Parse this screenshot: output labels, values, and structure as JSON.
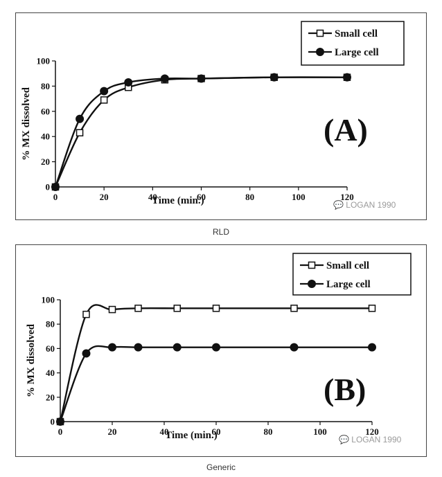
{
  "chart_data": [
    {
      "type": "line",
      "panel_label": "(A)",
      "caption": "RLD",
      "xlabel": "Time (min.)",
      "ylabel": "% MX dissolved",
      "xlim": [
        0,
        120
      ],
      "ylim": [
        0,
        100
      ],
      "xticks": [
        "0",
        "20",
        "40",
        "60",
        "80",
        "100",
        "120"
      ],
      "yticks": [
        "0",
        "20",
        "40",
        "60",
        "80",
        "100"
      ],
      "legend_position": "top-right",
      "watermark": "LOGAN 1990",
      "x": [
        0,
        10,
        20,
        30,
        45,
        60,
        90,
        120
      ],
      "series": [
        {
          "name": "Small cell",
          "marker": "open-square",
          "values": [
            0,
            43,
            69,
            79,
            85,
            86,
            87,
            87
          ]
        },
        {
          "name": "Large cell",
          "marker": "filled-circle",
          "values": [
            0,
            54,
            76,
            83,
            86,
            86,
            87,
            87
          ]
        }
      ]
    },
    {
      "type": "line",
      "panel_label": "(B)",
      "caption": "Generic",
      "xlabel": "Time (min.)",
      "ylabel": "% MX dissolved",
      "xlim": [
        0,
        120
      ],
      "ylim": [
        0,
        100
      ],
      "xticks": [
        "0",
        "20",
        "40",
        "60",
        "80",
        "100",
        "120"
      ],
      "yticks": [
        "0",
        "20",
        "40",
        "60",
        "80",
        "100"
      ],
      "legend_position": "top-right",
      "watermark": "LOGAN 1990",
      "x": [
        0,
        10,
        20,
        30,
        45,
        60,
        90,
        120
      ],
      "series": [
        {
          "name": "Small cell",
          "marker": "open-square",
          "values": [
            0,
            88,
            92,
            93,
            93,
            93,
            93,
            93
          ]
        },
        {
          "name": "Large cell",
          "marker": "filled-circle",
          "values": [
            0,
            56,
            61,
            61,
            61,
            61,
            61,
            61
          ]
        }
      ]
    }
  ]
}
